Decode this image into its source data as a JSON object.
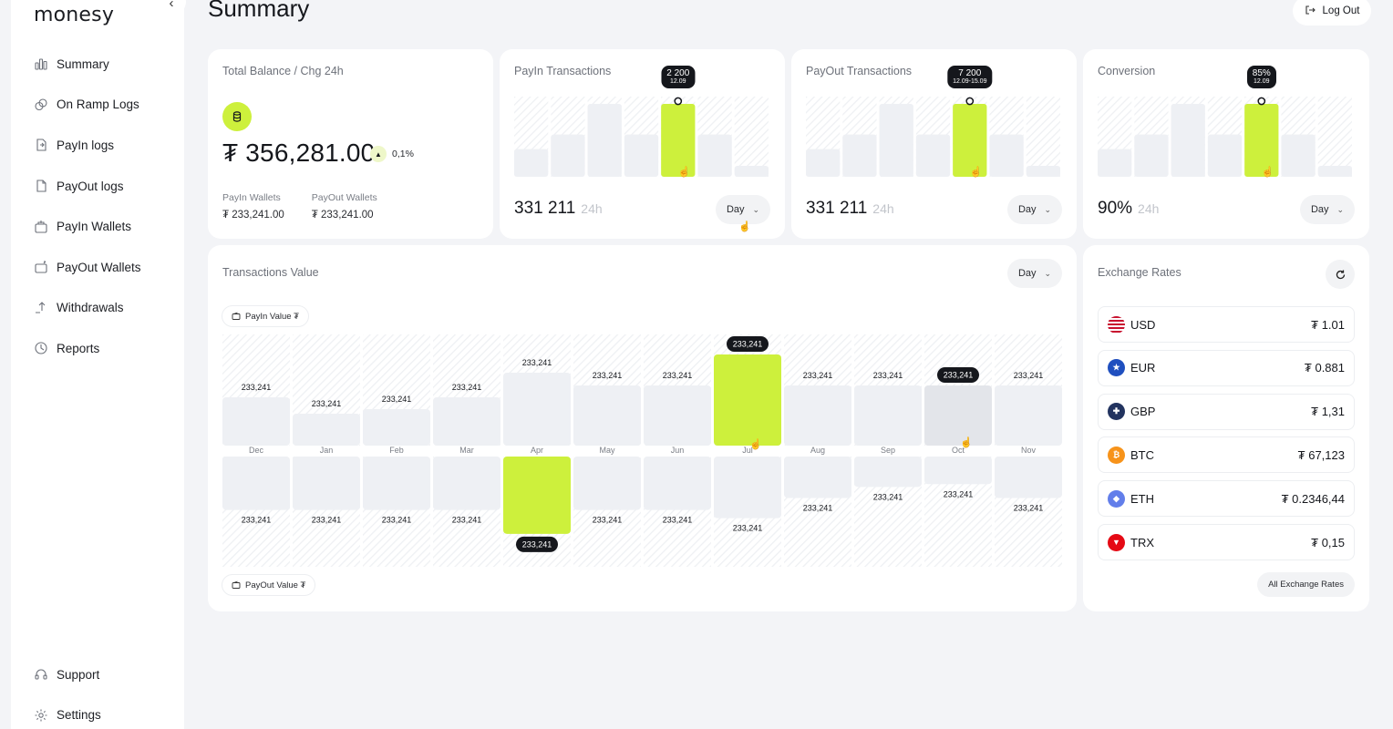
{
  "app": {
    "logo": "monesy",
    "collapse_icon": "chevron-left-icon"
  },
  "sidebar": {
    "items": [
      {
        "label": "Summary",
        "icon": "bar-chart-icon"
      },
      {
        "label": "On Ramp Logs",
        "icon": "coins-icon"
      },
      {
        "label": "PayIn logs",
        "icon": "document-in-icon"
      },
      {
        "label": "PayOut logs",
        "icon": "document-out-icon"
      },
      {
        "label": "PayIn Wallets",
        "icon": "wallet-in-icon"
      },
      {
        "label": "PayOut Wallets",
        "icon": "wallet-out-icon"
      },
      {
        "label": "Withdrawals",
        "icon": "withdraw-icon"
      },
      {
        "label": "Reports",
        "icon": "clock-chart-icon"
      }
    ],
    "bottom_items": [
      {
        "label": "Support",
        "icon": "headset-icon"
      },
      {
        "label": "Settings",
        "icon": "gear-icon"
      }
    ]
  },
  "header": {
    "title": "Summary",
    "logout_label": "Log Out"
  },
  "balance": {
    "title": "Total Balance / Chg 24h",
    "amount": "₮ 356,281.00",
    "change": "0,1%",
    "payin_label": "PayIn Wallets",
    "payin_value": "₮ 233,241.00",
    "payout_label": "PayOut Wallets",
    "payout_value": "₮ 233,241.00"
  },
  "payin": {
    "title": "PayIn Transactions",
    "value": "331 211",
    "period": "24h",
    "range": "Day",
    "tooltip": "2 200",
    "tooltip_date": "12.09",
    "bars": [
      0.38,
      0.58,
      1.0,
      0.58,
      1.0,
      0.58,
      0.15
    ],
    "highlight": 4
  },
  "payout": {
    "title": "PayOut Transactions",
    "value": "331 211",
    "period": "24h",
    "range": "Day",
    "tooltip": "7 200",
    "tooltip_date": "12.09-15.09",
    "bars": [
      0.38,
      0.58,
      1.0,
      0.58,
      1.0,
      0.58,
      0.15
    ],
    "highlight": 4
  },
  "conversion": {
    "title": "Conversion",
    "value": "90%",
    "period": "24h",
    "range": "Day",
    "tooltip": "85%",
    "tooltip_date": "12.09",
    "bars": [
      0.38,
      0.58,
      1.0,
      0.58,
      1.0,
      0.58,
      0.15
    ],
    "highlight": 4
  },
  "transactions_value": {
    "title": "Transactions Value",
    "range": "Day",
    "payin_legend": "PayIn Value ₮",
    "payout_legend": "PayOut Value ₮"
  },
  "chart_data": {
    "type": "bar",
    "categories": [
      "Dec",
      "Jan",
      "Feb",
      "Mar",
      "Apr",
      "May",
      "Jun",
      "Jul",
      "Aug",
      "Sep",
      "Oct",
      "Nov"
    ],
    "series": [
      {
        "name": "PayIn Value ₮",
        "values": [
          0.53,
          0.35,
          0.4,
          0.53,
          0.8,
          0.66,
          0.66,
          1.0,
          0.66,
          0.66,
          0.66,
          0.66
        ],
        "labels": [
          "233,241",
          "233,241",
          "233,241",
          "233,241",
          "233,241",
          "233,241",
          "233,241",
          "233,241",
          "233,241",
          "233,241",
          "233,241",
          "233,241"
        ],
        "highlight": 7,
        "hover": 10
      },
      {
        "name": "PayOut Value ₮",
        "values": [
          0.58,
          0.58,
          0.58,
          0.58,
          0.84,
          0.58,
          0.58,
          0.67,
          0.45,
          0.33,
          0.3,
          0.45
        ],
        "labels": [
          "233,241",
          "233,241",
          "233,241",
          "233,241",
          "233,241",
          "233,241",
          "233,241",
          "233,241",
          "233,241",
          "233,241",
          "233,241",
          "233,241"
        ],
        "highlight": 4
      }
    ]
  },
  "exchange": {
    "title": "Exchange Rates",
    "all_label": "All Exchange Rates",
    "rates": [
      {
        "code": "USD",
        "value": "₮ 1.01",
        "color": "#3c5aa6"
      },
      {
        "code": "EUR",
        "value": "₮ 0.881",
        "color": "#1f4fbf"
      },
      {
        "code": "GBP",
        "value": "₮ 1,31",
        "color": "#22335f"
      },
      {
        "code": "BTC",
        "value": "₮ 67,123",
        "color": "#f7931a"
      },
      {
        "code": "ETH",
        "value": "₮ 0.2346,44",
        "color": "#627eea"
      },
      {
        "code": "TRX",
        "value": "₮ 0,15",
        "color": "#e50914"
      }
    ]
  },
  "colors": {
    "accent": "#cdf03c",
    "bar": "#eef0f4",
    "dark": "#15171c"
  }
}
